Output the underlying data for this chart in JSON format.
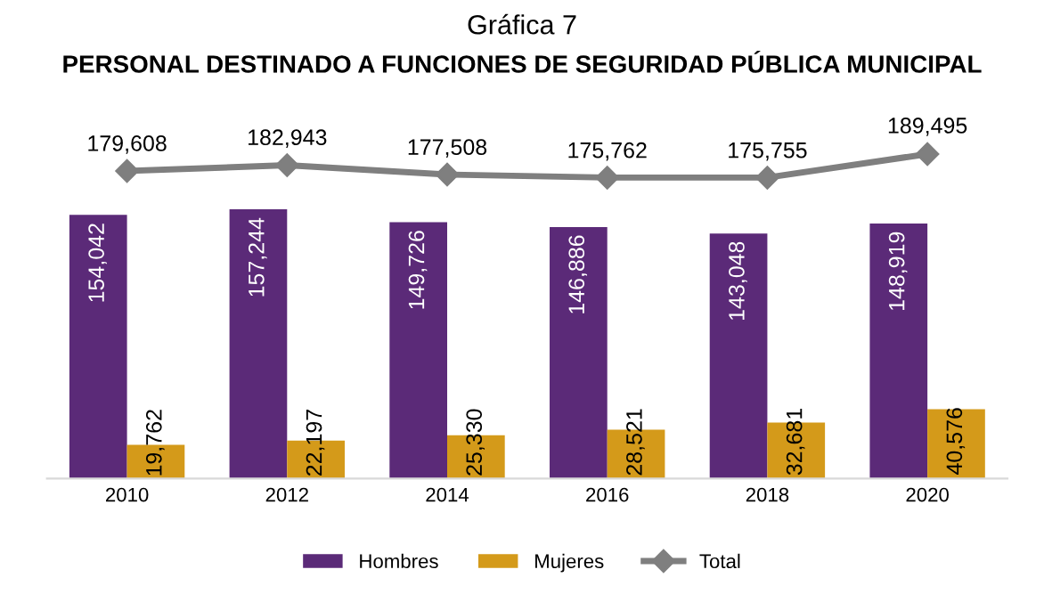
{
  "chart_data": {
    "type": "bar",
    "title": "Gráfica 7",
    "subtitle": "PERSONAL DESTINADO A FUNCIONES DE SEGURIDAD PÚBLICA MUNICIPAL",
    "categories": [
      "2010",
      "2012",
      "2014",
      "2016",
      "2018",
      "2020"
    ],
    "series": [
      {
        "name": "Hombres",
        "color": "#5b2a78",
        "values": [
          154042,
          157244,
          149726,
          146886,
          143048,
          148919
        ],
        "value_labels": [
          "154,042",
          "157,244",
          "149,726",
          "146,886",
          "143,048",
          "148,919"
        ]
      },
      {
        "name": "Mujeres",
        "color": "#d49a1a",
        "values": [
          19762,
          22197,
          25330,
          28521,
          32681,
          40576
        ],
        "value_labels": [
          "19,762",
          "22,197",
          "25,330",
          "28,521",
          "32,681",
          "40,576"
        ]
      },
      {
        "name": "Total",
        "type": "line",
        "color": "#7f7f7f",
        "marker": "diamond",
        "values": [
          179608,
          182943,
          177508,
          175762,
          175755,
          189495
        ],
        "value_labels": [
          "179,608",
          "182,943",
          "177,508",
          "175,762",
          "175,755",
          "189,495"
        ]
      }
    ],
    "grid": false,
    "legend": "bottom",
    "tick_labels": "x"
  }
}
